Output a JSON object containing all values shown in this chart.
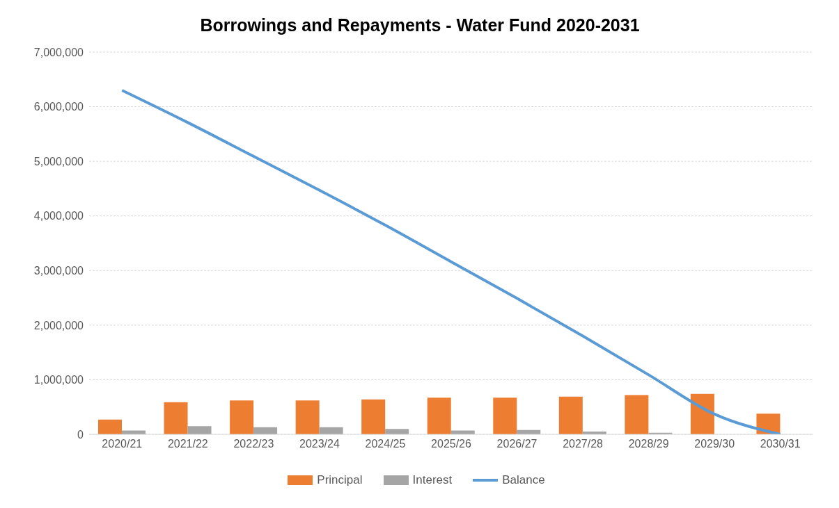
{
  "chart_data": {
    "type": "bar",
    "title": "Borrowings and Repayments - Water Fund 2020-2031",
    "categories": [
      "2020/21",
      "2021/22",
      "2022/23",
      "2023/24",
      "2024/25",
      "2025/26",
      "2026/27",
      "2027/28",
      "2028/29",
      "2029/30",
      "2030/31"
    ],
    "series": [
      {
        "name": "Principal",
        "color": "#ed7d31",
        "values": [
          270000,
          590000,
          620000,
          620000,
          640000,
          670000,
          670000,
          690000,
          720000,
          740000,
          380000
        ]
      },
      {
        "name": "Interest",
        "color": "#a5a5a5",
        "values": [
          70000,
          150000,
          130000,
          130000,
          100000,
          70000,
          80000,
          50000,
          30000,
          0,
          0
        ]
      },
      {
        "name": "Balance",
        "type": "line",
        "color": "#5b9bd5",
        "values": [
          6300000,
          5710000,
          5090000,
          4470000,
          3830000,
          3160000,
          2490000,
          1800000,
          1090000,
          370000,
          0
        ]
      }
    ],
    "ylim": [
      0,
      7000000
    ],
    "yticks": [
      0,
      {
        "value": 1000000,
        "label": "1,000,000"
      },
      {
        "value": 2000000,
        "label": "2,000,000"
      },
      {
        "value": 3000000,
        "label": "3,000,000"
      },
      {
        "value": 4000000,
        "label": "4,000,000"
      },
      {
        "value": 5000000,
        "label": "5,000,000"
      },
      {
        "value": 6000000,
        "label": "6,000,000"
      },
      {
        "value": 7000000,
        "label": "7,000,000"
      }
    ],
    "grid": "y",
    "legend": "bottom",
    "marker": "none"
  }
}
